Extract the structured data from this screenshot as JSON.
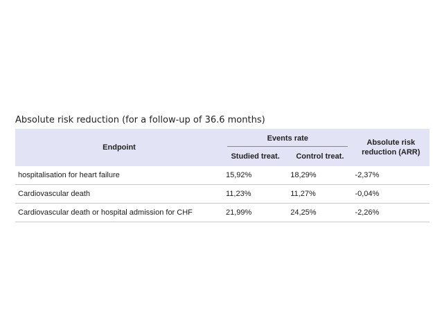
{
  "caption": "Absolute risk reduction (for a follow-up of 36.6 months)",
  "headers": {
    "endpoint": "Endpoint",
    "events_rate": "Events rate",
    "studied": "Studied treat.",
    "control": "Control treat.",
    "arr_line1": "Absolute risk",
    "arr_line2": "reduction (ARR)"
  },
  "rows": [
    {
      "endpoint": "hospitalisation for heart failure",
      "studied": "15,92%",
      "control": "18,29%",
      "arr": "-2,37%"
    },
    {
      "endpoint": "Cardiovascular death",
      "studied": "11,23%",
      "control": "11,27%",
      "arr": "-0,04%"
    },
    {
      "endpoint": "Cardiovascular death or hospital admission for CHF",
      "studied": "21,99%",
      "control": "24,25%",
      "arr": "-2,26%"
    }
  ]
}
